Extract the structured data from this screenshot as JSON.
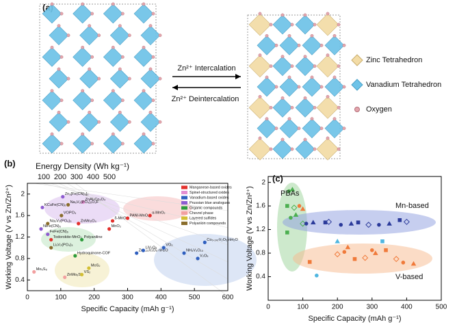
{
  "panel_a": {
    "panel_label": "(a)",
    "arrow_top": "Zn²⁺ Intercalation",
    "arrow_bottom": "Zn²⁺ Deintercalation",
    "legend": [
      "Zinc Tetrahedron",
      "Vanadium Tetrahedron",
      "Oxygen"
    ]
  },
  "chart_data": [
    {
      "type": "scatter",
      "panel_label": "(b)",
      "x_label": "Specific Capacity (mAh g⁻¹)",
      "y_label": "Working Voltage (V vs Zn/Zn²⁺)",
      "top_axis_label": "Energy Density (Wh kg⁻¹)",
      "top_ticks": [
        100,
        200,
        300,
        400,
        500
      ],
      "xlim": [
        0,
        600
      ],
      "xticks": [
        0,
        100,
        200,
        300,
        400,
        500,
        600
      ],
      "ylim": [
        0.2,
        2.2
      ],
      "yticks": [
        0.4,
        0.8,
        1.2,
        1.6,
        2.0
      ],
      "series": [
        {
          "name": "Manganese-based oxides",
          "color": "#e3302c",
          "x": [
            153,
            245,
            255,
            300,
            367,
            71
          ],
          "values": [
            1.45,
            1.35,
            1.5,
            1.55,
            1.6,
            1.15
          ],
          "point_labels": [
            "ZnMn₂O₄",
            "MnO₂",
            "δ-MnO₂",
            "PANI-MnO₂",
            "α-MnO₂",
            "Todorokite-MnO₂"
          ]
        },
        {
          "name": "Spinel-structured oxides",
          "color": "#e38fd2",
          "x": [
            167
          ],
          "values": [
            1.85
          ],
          "point_labels": [
            "ZnAl₂Co₂O₄"
          ]
        },
        {
          "name": "Vanadium-based oxides",
          "color": "#2f5fbf",
          "x": [
            327,
            347,
            408,
            469,
            510,
            531
          ],
          "values": [
            0.9,
            0.95,
            1.0,
            0.9,
            0.8,
            1.1
          ],
          "point_labels": [
            "Zn₀.₂₅V₂O₅·nH₂O",
            "LiV₃O₈",
            "VO₂",
            "NH₄V₄O₁₀",
            "V₂O₅",
            "Co₀.₂₄₇V₂O₅·nH₂O"
          ]
        },
        {
          "name": "Prussian blue analogues",
          "color": "#8e5bd0",
          "x": [
            106,
            45,
            41,
            61
          ],
          "values": [
            1.95,
            1.75,
            1.35,
            1.25
          ],
          "point_labels": [
            "Zn₃[Fe(CN)₆]₂",
            "KCuFe(CN)₆",
            "NiFe(CN)₆",
            "FeFe(CN)₆"
          ]
        },
        {
          "name": "Organic compounds",
          "color": "#2e9c3c",
          "x": [
            163,
            143
          ],
          "values": [
            1.15,
            0.85
          ],
          "point_labels": [
            "Polyaniline",
            "Hydroquinone-COF"
          ]
        },
        {
          "name": "Chevrel phase",
          "color": "#f2a0a0",
          "x": [
            20,
            112
          ],
          "values": [
            0.55,
            0.45
          ],
          "point_labels": [
            "Mo₆S₈",
            "ZnMo₆S₈"
          ]
        },
        {
          "name": "Layered sulfides",
          "color": "#d3bf34",
          "x": [
            163,
            184
          ],
          "values": [
            0.5,
            0.62
          ],
          "point_labels": [
            "VS₂",
            "MoS₂"
          ]
        },
        {
          "name": "Polyanion compounds",
          "color": "#8a6d2b",
          "x": [
            122,
            102,
            61,
            71
          ],
          "values": [
            1.8,
            1.6,
            1.45,
            1.0
          ],
          "point_labels": [
            "Na₃V₂(PO₄)₂O₂F",
            "VOPO₄",
            "Na₃V₂(PO₄)₃",
            "Li₃V₂(PO₄)₃"
          ]
        }
      ]
    },
    {
      "type": "scatter",
      "panel_label": "(c)",
      "x_label": "Specific Capacity (mAh g⁻¹)",
      "y_label": "Working Voltage (V vs Zn/Zn²⁺)",
      "xlim": [
        0,
        500
      ],
      "xticks": [
        0,
        100,
        200,
        300,
        400,
        500
      ],
      "ylim": [
        0,
        2.1
      ],
      "yticks": [
        0.4,
        0.8,
        1.2,
        1.6,
        2.0
      ],
      "series": [
        {
          "name": "PBAs",
          "color": "#4caf50",
          "x": [
            60,
            70,
            55,
            75,
            65,
            80,
            55,
            100
          ],
          "values": [
            1.85,
            1.88,
            1.6,
            1.57,
            1.4,
            1.45,
            1.15,
            1.3
          ]
        },
        {
          "name": "Mn-based",
          "color": "#2b3a9a",
          "x": [
            110,
            130,
            165,
            175,
            210,
            240,
            260,
            290,
            320,
            350,
            380,
            400
          ],
          "values": [
            1.3,
            1.32,
            1.32,
            1.33,
            1.28,
            1.3,
            1.32,
            1.28,
            1.28,
            1.3,
            1.36,
            1.33
          ]
        },
        {
          "name": "V-based",
          "color": "#f07a3a",
          "x": [
            90,
            100,
            120,
            200,
            220,
            230,
            250,
            280,
            300,
            310,
            340,
            370,
            390,
            420
          ],
          "values": [
            1.6,
            1.55,
            0.65,
            0.78,
            0.82,
            0.9,
            0.7,
            0.72,
            0.85,
            0.8,
            0.85,
            0.7,
            0.64,
            0.62
          ]
        },
        {
          "color": "#4fb6e0",
          "x": [
            140,
            200,
            330
          ],
          "values": [
            0.42,
            1.0,
            1.0
          ]
        }
      ]
    }
  ]
}
